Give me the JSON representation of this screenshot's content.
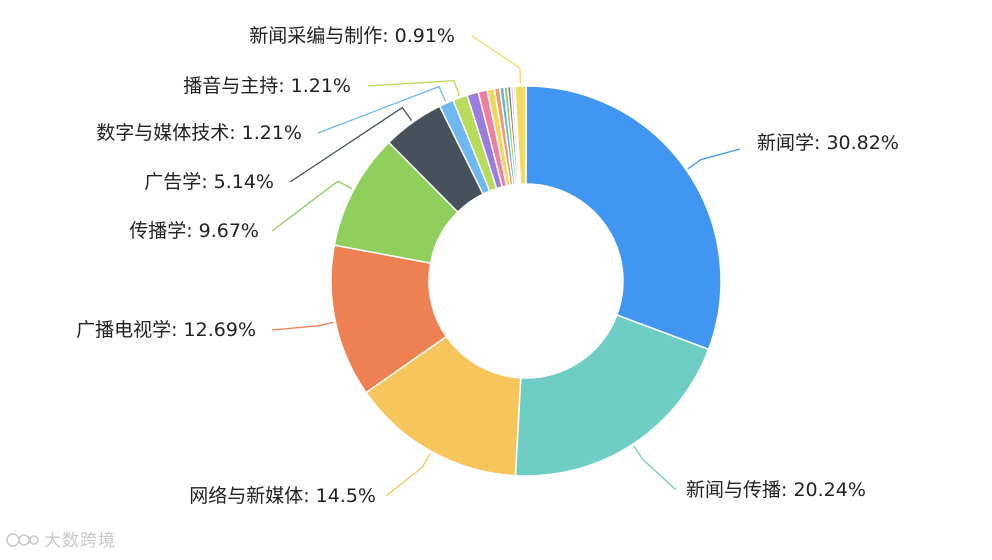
{
  "chart_data": {
    "type": "pie",
    "variant": "donut",
    "slices": [
      {
        "label": "新闻学",
        "value": 30.82,
        "display": "新闻学: 30.82%",
        "color": "#4096f0"
      },
      {
        "label": "新闻与传播",
        "value": 20.24,
        "display": "新闻与传播: 20.24%",
        "color": "#6ecdc5"
      },
      {
        "label": "网络与新媒体",
        "value": 14.5,
        "display": "网络与新媒体: 14.5%",
        "color": "#f6c55c"
      },
      {
        "label": "广播电视学",
        "value": 12.69,
        "display": "广播电视学: 12.69%",
        "color": "#ee8152"
      },
      {
        "label": "传播学",
        "value": 9.67,
        "display": "传播学: 9.67%",
        "color": "#8ed05b"
      },
      {
        "label": "广告学",
        "value": 5.14,
        "display": "广告学: 5.14%",
        "color": "#45525c"
      },
      {
        "label": "数字与媒体技术",
        "value": 1.21,
        "display": "数字与媒体技术: 1.21%",
        "color": "#6db9ef"
      },
      {
        "label": "播音与主持",
        "value": 1.21,
        "display": "播音与主持: 1.21%",
        "color": "#b6dc5a"
      },
      {
        "label": "",
        "value": 0.95,
        "display": "",
        "color": "#9a7be0"
      },
      {
        "label": "",
        "value": 0.75,
        "display": "",
        "color": "#ef7ea2"
      },
      {
        "label": "",
        "value": 0.6,
        "display": "",
        "color": "#f0d659"
      },
      {
        "label": "",
        "value": 0.45,
        "display": "",
        "color": "#f19a6a"
      },
      {
        "label": "",
        "value": 0.35,
        "display": "",
        "color": "#5fb3e6"
      },
      {
        "label": "",
        "value": 0.3,
        "display": "",
        "color": "#9fc763"
      },
      {
        "label": "",
        "value": 0.25,
        "display": "",
        "color": "#687784"
      },
      {
        "label": "",
        "value": 0.2,
        "display": "",
        "color": "#d8a6e8"
      },
      {
        "label": "",
        "value": 0.15,
        "display": "",
        "color": "#c8a86c"
      },
      {
        "label": "新闻采编与制作",
        "value": 0.91,
        "display": "新闻采编与制作: 0.91%",
        "color": "#f0dc64"
      }
    ]
  },
  "watermark": "大数跨境"
}
